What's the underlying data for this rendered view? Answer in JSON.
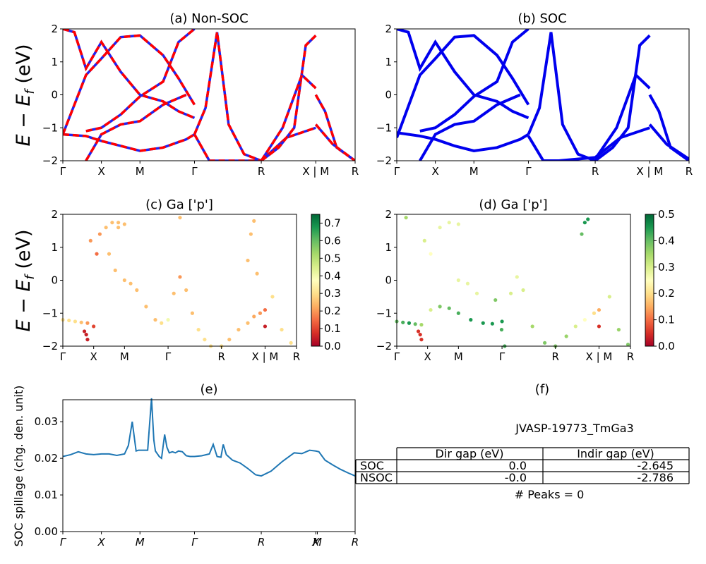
{
  "panels": {
    "a": {
      "title": "(a) Non-SOC"
    },
    "b": {
      "title": "(b) SOC"
    },
    "c": {
      "title": "(c)  Ga ['p']"
    },
    "d": {
      "title": "(d) Ga ['p']"
    },
    "e": {
      "title": "(e)"
    },
    "f": {
      "title": "(f)"
    }
  },
  "ylabel_text": "E − E",
  "ylabel_sub": "f",
  "ylabel_unit": " (eV)",
  "kpath_labels": [
    "Γ",
    "X",
    "M",
    "Γ",
    "R",
    "X | M",
    "R"
  ],
  "spillage_xlabels": [
    "Γ",
    "X",
    "M",
    "Γ",
    "R",
    "X",
    "M",
    "R"
  ],
  "spillage_ylabel": "SOC spillage (chg. den. unit)",
  "colorbar_c_ticks": [
    "0.0",
    "0.1",
    "0.2",
    "0.3",
    "0.4",
    "0.5",
    "0.6",
    "0.7"
  ],
  "colorbar_d_ticks": [
    "0.0",
    "0.1",
    "0.2",
    "0.3",
    "0.4",
    "0.5"
  ],
  "colors": {
    "nonsoc_band": "#ff0000",
    "nonsoc_dash": "#2222ee",
    "soc_band": "#0000ee",
    "spillage_line": "#1f77b4"
  },
  "info": {
    "jid": "JVASP-19773_TmGa3",
    "headers": [
      "Dir gap (eV)",
      "Indir gap (eV)"
    ],
    "rows": [
      {
        "label": "SOC",
        "dir": "0.0",
        "indir": "-2.645"
      },
      {
        "label": "NSOC",
        "dir": "-0.0",
        "indir": "-2.786"
      }
    ],
    "peaks": "# Peaks = 0"
  },
  "chart_data": [
    {
      "type": "line",
      "panel": "a",
      "title": "(a) Non-SOC",
      "ylabel": "E − E_f (eV)",
      "ylim": [
        -2,
        2
      ],
      "xticks": [
        "Γ",
        "X",
        "M",
        "Γ",
        "R",
        "X | M",
        "R"
      ],
      "kpath_positions": [
        0,
        0.5,
        1.0,
        1.707,
        2.573,
        3.28,
        3.79
      ],
      "bands": [
        {
          "x": [
            0,
            0.3,
            0.5,
            0.75,
            1.0,
            1.3,
            1.6,
            1.707
          ],
          "y": [
            -1.2,
            -1.25,
            -1.4,
            -1.55,
            -1.7,
            -1.6,
            -1.35,
            -1.2
          ]
        },
        {
          "x": [
            0,
            0.3,
            0.5,
            0.75,
            1.0,
            1.3,
            1.5,
            1.707
          ],
          "y": [
            -1.2,
            0.6,
            1.1,
            1.75,
            1.8,
            1.2,
            0.5,
            -0.3
          ]
        },
        {
          "x": [
            0,
            0.15,
            0.3,
            0.5,
            0.75,
            1.0,
            1.3,
            1.5,
            1.707
          ],
          "y": [
            2.0,
            1.9,
            0.8,
            1.6,
            0.7,
            0.0,
            -0.2,
            -0.5,
            -0.7
          ]
        },
        {
          "x": [
            0.3,
            0.5,
            0.75,
            1.0,
            1.3,
            1.5,
            1.707
          ],
          "y": [
            -1.1,
            -1.0,
            -0.6,
            -0.05,
            0.4,
            1.6,
            2.0
          ]
        },
        {
          "x": [
            0.3,
            0.5,
            0.75,
            1.0,
            1.3,
            1.6
          ],
          "y": [
            -2.0,
            -1.2,
            -0.9,
            -0.8,
            -0.3,
            0.0
          ]
        },
        {
          "x": [
            1.707,
            1.85,
            2.0,
            2.15,
            2.35,
            2.573
          ],
          "y": [
            -1.2,
            -0.4,
            1.9,
            -0.9,
            -1.8,
            -2.0
          ]
        },
        {
          "x": [
            1.707,
            1.9,
            2.1,
            2.573,
            2.9,
            3.28
          ],
          "y": [
            -1.2,
            -2.0,
            -2.0,
            -2.0,
            -1.3,
            -1.0
          ]
        },
        {
          "x": [
            2.573,
            2.8,
            3.0,
            3.15,
            3.28
          ],
          "y": [
            -2.0,
            -1.6,
            -1.0,
            1.5,
            1.8
          ]
        },
        {
          "x": [
            2.573,
            2.85,
            3.1,
            3.28
          ],
          "y": [
            -2.0,
            -1.0,
            0.6,
            0.2
          ]
        },
        {
          "x": [
            3.28,
            3.4,
            3.55,
            3.79
          ],
          "y": [
            0.0,
            -0.5,
            -1.6,
            -2.0
          ]
        },
        {
          "x": [
            3.28,
            3.5,
            3.79
          ],
          "y": [
            -0.9,
            -1.5,
            -2.0
          ]
        }
      ]
    },
    {
      "type": "line",
      "panel": "b",
      "title": "(b) SOC",
      "ylabel": "",
      "ylim": [
        -2,
        2
      ],
      "xticks": [
        "Γ",
        "X",
        "M",
        "Γ",
        "R",
        "X | M",
        "R"
      ],
      "kpath_positions": [
        0,
        0.5,
        1.0,
        1.707,
        2.573,
        3.28,
        3.79
      ],
      "bands": [
        {
          "x": [
            0,
            0.3,
            0.5,
            0.75,
            1.0,
            1.3,
            1.6,
            1.707
          ],
          "y": [
            -1.15,
            -1.25,
            -1.35,
            -1.55,
            -1.7,
            -1.6,
            -1.35,
            -1.2
          ]
        },
        {
          "x": [
            0,
            0.3,
            0.5,
            0.75,
            1.0,
            1.3,
            1.5,
            1.707
          ],
          "y": [
            -1.3,
            0.6,
            1.1,
            1.75,
            1.8,
            1.2,
            0.5,
            -0.3
          ]
        },
        {
          "x": [
            0,
            0.15,
            0.3,
            0.5,
            0.75,
            1.0,
            1.3,
            1.5,
            1.707
          ],
          "y": [
            2.0,
            1.9,
            0.8,
            1.6,
            0.7,
            0.0,
            -0.2,
            -0.5,
            -0.7
          ]
        },
        {
          "x": [
            0.3,
            0.5,
            0.75,
            1.0,
            1.3,
            1.5,
            1.707
          ],
          "y": [
            -1.1,
            -1.0,
            -0.6,
            -0.05,
            0.4,
            1.6,
            2.0
          ]
        },
        {
          "x": [
            0.3,
            0.5,
            0.75,
            1.0,
            1.3,
            1.6
          ],
          "y": [
            -2.0,
            -1.2,
            -0.9,
            -0.8,
            -0.3,
            0.0
          ]
        },
        {
          "x": [
            1.707,
            1.85,
            2.0,
            2.15,
            2.35,
            2.573
          ],
          "y": [
            -1.2,
            -0.4,
            1.9,
            -0.9,
            -1.8,
            -2.0
          ]
        },
        {
          "x": [
            1.707,
            1.9,
            2.1,
            2.573,
            2.9,
            3.28
          ],
          "y": [
            -1.25,
            -2.0,
            -2.0,
            -1.9,
            -1.3,
            -1.0
          ]
        },
        {
          "x": [
            2.573,
            2.8,
            3.0,
            3.15,
            3.28
          ],
          "y": [
            -2.0,
            -1.6,
            -1.0,
            1.5,
            1.8
          ]
        },
        {
          "x": [
            2.573,
            2.85,
            3.1,
            3.28
          ],
          "y": [
            -1.95,
            -1.0,
            0.6,
            0.2
          ]
        },
        {
          "x": [
            3.28,
            3.4,
            3.55,
            3.79
          ],
          "y": [
            0.0,
            -0.5,
            -1.6,
            -2.0
          ]
        },
        {
          "x": [
            3.28,
            3.5,
            3.79
          ],
          "y": [
            -0.9,
            -1.5,
            -1.95
          ]
        }
      ]
    },
    {
      "type": "scatter",
      "panel": "c",
      "title": "(c)  Ga ['p']",
      "ylabel": "E − E_f (eV)",
      "ylim": [
        -2,
        2
      ],
      "colorbar_range": [
        0,
        0.75
      ],
      "xticks": [
        "Γ",
        "X",
        "M",
        "Γ",
        "R",
        "X | M",
        "R"
      ],
      "kpath_positions": [
        0,
        0.5,
        1.0,
        1.707,
        2.573,
        3.28,
        3.79
      ],
      "points": [
        [
          0.0,
          -1.2,
          0.3
        ],
        [
          0.1,
          -1.22,
          0.3
        ],
        [
          0.2,
          -1.25,
          0.3
        ],
        [
          0.3,
          -1.28,
          0.25
        ],
        [
          0.4,
          -1.3,
          0.2
        ],
        [
          0.35,
          -1.55,
          0.05
        ],
        [
          0.38,
          -1.65,
          0.05
        ],
        [
          0.4,
          -1.8,
          0.05
        ],
        [
          0.5,
          -1.4,
          0.1
        ],
        [
          0.55,
          0.8,
          0.15
        ],
        [
          0.6,
          1.4,
          0.2
        ],
        [
          0.7,
          1.6,
          0.25
        ],
        [
          0.8,
          1.75,
          0.25
        ],
        [
          0.9,
          1.75,
          0.25
        ],
        [
          1.0,
          1.7,
          0.25
        ],
        [
          0.9,
          1.6,
          0.25
        ],
        [
          0.75,
          0.8,
          0.25
        ],
        [
          0.85,
          0.3,
          0.25
        ],
        [
          1.0,
          0.0,
          0.25
        ],
        [
          1.1,
          -0.1,
          0.25
        ],
        [
          1.2,
          -0.3,
          0.25
        ],
        [
          1.35,
          -0.8,
          0.25
        ],
        [
          1.5,
          -1.2,
          0.25
        ],
        [
          1.6,
          -1.3,
          0.3
        ],
        [
          1.707,
          -1.2,
          0.4
        ],
        [
          1.8,
          -0.4,
          0.25
        ],
        [
          1.9,
          0.1,
          0.2
        ],
        [
          2.0,
          -0.3,
          0.25
        ],
        [
          2.1,
          -1.0,
          0.25
        ],
        [
          2.2,
          -1.5,
          0.3
        ],
        [
          2.3,
          -1.8,
          0.3
        ],
        [
          2.4,
          -2.0,
          0.3
        ],
        [
          2.573,
          -2.0,
          0.3
        ],
        [
          2.7,
          -1.8,
          0.25
        ],
        [
          2.85,
          -1.5,
          0.25
        ],
        [
          3.0,
          -1.3,
          0.25
        ],
        [
          3.1,
          -1.1,
          0.22
        ],
        [
          3.2,
          -1.0,
          0.2
        ],
        [
          3.28,
          -0.9,
          0.15
        ],
        [
          3.28,
          -1.4,
          0.05
        ],
        [
          3.0,
          0.6,
          0.25
        ],
        [
          3.05,
          1.4,
          0.25
        ],
        [
          3.1,
          1.8,
          0.25
        ],
        [
          3.15,
          0.2,
          0.25
        ],
        [
          3.4,
          -0.5,
          0.3
        ],
        [
          3.55,
          -1.5,
          0.3
        ],
        [
          3.7,
          -1.9,
          0.3
        ],
        [
          1.9,
          1.9,
          0.25
        ],
        [
          0.45,
          1.2,
          0.2
        ]
      ]
    },
    {
      "type": "scatter",
      "panel": "d",
      "title": "(d) Ga ['p']",
      "ylabel": "",
      "ylim": [
        -2,
        2
      ],
      "colorbar_range": [
        0,
        0.5
      ],
      "xticks": [
        "Γ",
        "X",
        "M",
        "Γ",
        "R",
        "X | M",
        "R"
      ],
      "kpath_positions": [
        0,
        0.5,
        1.0,
        1.707,
        2.573,
        3.28,
        3.79
      ],
      "points": [
        [
          0.0,
          -1.25,
          0.4
        ],
        [
          0.1,
          -1.28,
          0.42
        ],
        [
          0.2,
          -1.3,
          0.45
        ],
        [
          0.3,
          -1.33,
          0.4
        ],
        [
          0.4,
          -1.35,
          0.35
        ],
        [
          0.35,
          -1.55,
          0.05
        ],
        [
          0.38,
          -1.65,
          0.05
        ],
        [
          0.4,
          -1.8,
          0.05
        ],
        [
          0.55,
          -0.9,
          0.3
        ],
        [
          0.7,
          -0.8,
          0.38
        ],
        [
          0.85,
          -0.85,
          0.4
        ],
        [
          1.0,
          -1.0,
          0.42
        ],
        [
          1.2,
          -1.2,
          0.45
        ],
        [
          1.4,
          -1.3,
          0.45
        ],
        [
          1.55,
          -1.32,
          0.45
        ],
        [
          1.707,
          -1.25,
          0.45
        ],
        [
          0.55,
          0.8,
          0.25
        ],
        [
          0.7,
          1.6,
          0.28
        ],
        [
          0.85,
          1.75,
          0.28
        ],
        [
          1.0,
          1.7,
          0.28
        ],
        [
          1.0,
          0.0,
          0.28
        ],
        [
          1.15,
          -0.1,
          0.28
        ],
        [
          1.3,
          -0.4,
          0.28
        ],
        [
          1.6,
          -0.6,
          0.38
        ],
        [
          1.7,
          -1.5,
          0.42
        ],
        [
          1.75,
          -2.0,
          0.42
        ],
        [
          1.85,
          -0.4,
          0.3
        ],
        [
          1.95,
          0.1,
          0.28
        ],
        [
          2.05,
          -0.3,
          0.3
        ],
        [
          2.2,
          -1.4,
          0.35
        ],
        [
          2.4,
          -1.9,
          0.38
        ],
        [
          2.573,
          -2.0,
          0.38
        ],
        [
          2.75,
          -1.7,
          0.36
        ],
        [
          2.9,
          -1.4,
          0.3
        ],
        [
          3.05,
          -1.2,
          0.25
        ],
        [
          3.2,
          -1.0,
          0.2
        ],
        [
          3.28,
          -0.9,
          0.15
        ],
        [
          3.28,
          -1.4,
          0.05
        ],
        [
          3.0,
          1.4,
          0.4
        ],
        [
          3.05,
          1.75,
          0.45
        ],
        [
          3.1,
          1.85,
          0.45
        ],
        [
          3.45,
          -0.5,
          0.3
        ],
        [
          3.6,
          -1.5,
          0.36
        ],
        [
          3.75,
          -1.95,
          0.38
        ],
        [
          0.15,
          1.9,
          0.35
        ],
        [
          0.45,
          1.2,
          0.3
        ]
      ]
    },
    {
      "type": "line",
      "panel": "e",
      "title": "(e)",
      "ylabel": "SOC spillage (chg. den. unit)",
      "ylim": [
        0.0,
        0.036
      ],
      "yticks": [
        "0.00",
        "0.01",
        "0.02",
        "0.03"
      ],
      "xticks": [
        "Γ",
        "X",
        "M",
        "Γ",
        "R",
        "X",
        "M",
        "R"
      ],
      "kpath_positions": [
        0,
        0.5,
        1.0,
        1.707,
        2.573,
        3.28,
        3.3,
        3.79
      ],
      "x": [
        0,
        0.1,
        0.2,
        0.3,
        0.4,
        0.5,
        0.6,
        0.7,
        0.8,
        0.85,
        0.9,
        0.95,
        0.98,
        1.0,
        1.05,
        1.1,
        1.15,
        1.18,
        1.2,
        1.25,
        1.28,
        1.32,
        1.35,
        1.38,
        1.42,
        1.46,
        1.5,
        1.55,
        1.6,
        1.65,
        1.7,
        1.707,
        1.8,
        1.9,
        1.95,
        2.0,
        2.05,
        2.08,
        2.12,
        2.2,
        2.3,
        2.4,
        2.5,
        2.573,
        2.7,
        2.85,
        3.0,
        3.1,
        3.2,
        3.28,
        3.32,
        3.4,
        3.5,
        3.6,
        3.7,
        3.79
      ],
      "y": [
        0.0205,
        0.021,
        0.0218,
        0.0212,
        0.021,
        0.0212,
        0.0212,
        0.0208,
        0.0212,
        0.0235,
        0.03,
        0.022,
        0.0222,
        0.0222,
        0.0222,
        0.0222,
        0.0364,
        0.025,
        0.022,
        0.0205,
        0.02,
        0.0265,
        0.023,
        0.0215,
        0.0218,
        0.0215,
        0.022,
        0.0218,
        0.0207,
        0.0205,
        0.0205,
        0.0205,
        0.0207,
        0.0212,
        0.0238,
        0.0205,
        0.0203,
        0.0238,
        0.021,
        0.0195,
        0.0187,
        0.0172,
        0.0155,
        0.0152,
        0.0165,
        0.0192,
        0.0215,
        0.0213,
        0.0222,
        0.022,
        0.0218,
        0.0195,
        0.0182,
        0.017,
        0.016,
        0.0152
      ]
    }
  ]
}
